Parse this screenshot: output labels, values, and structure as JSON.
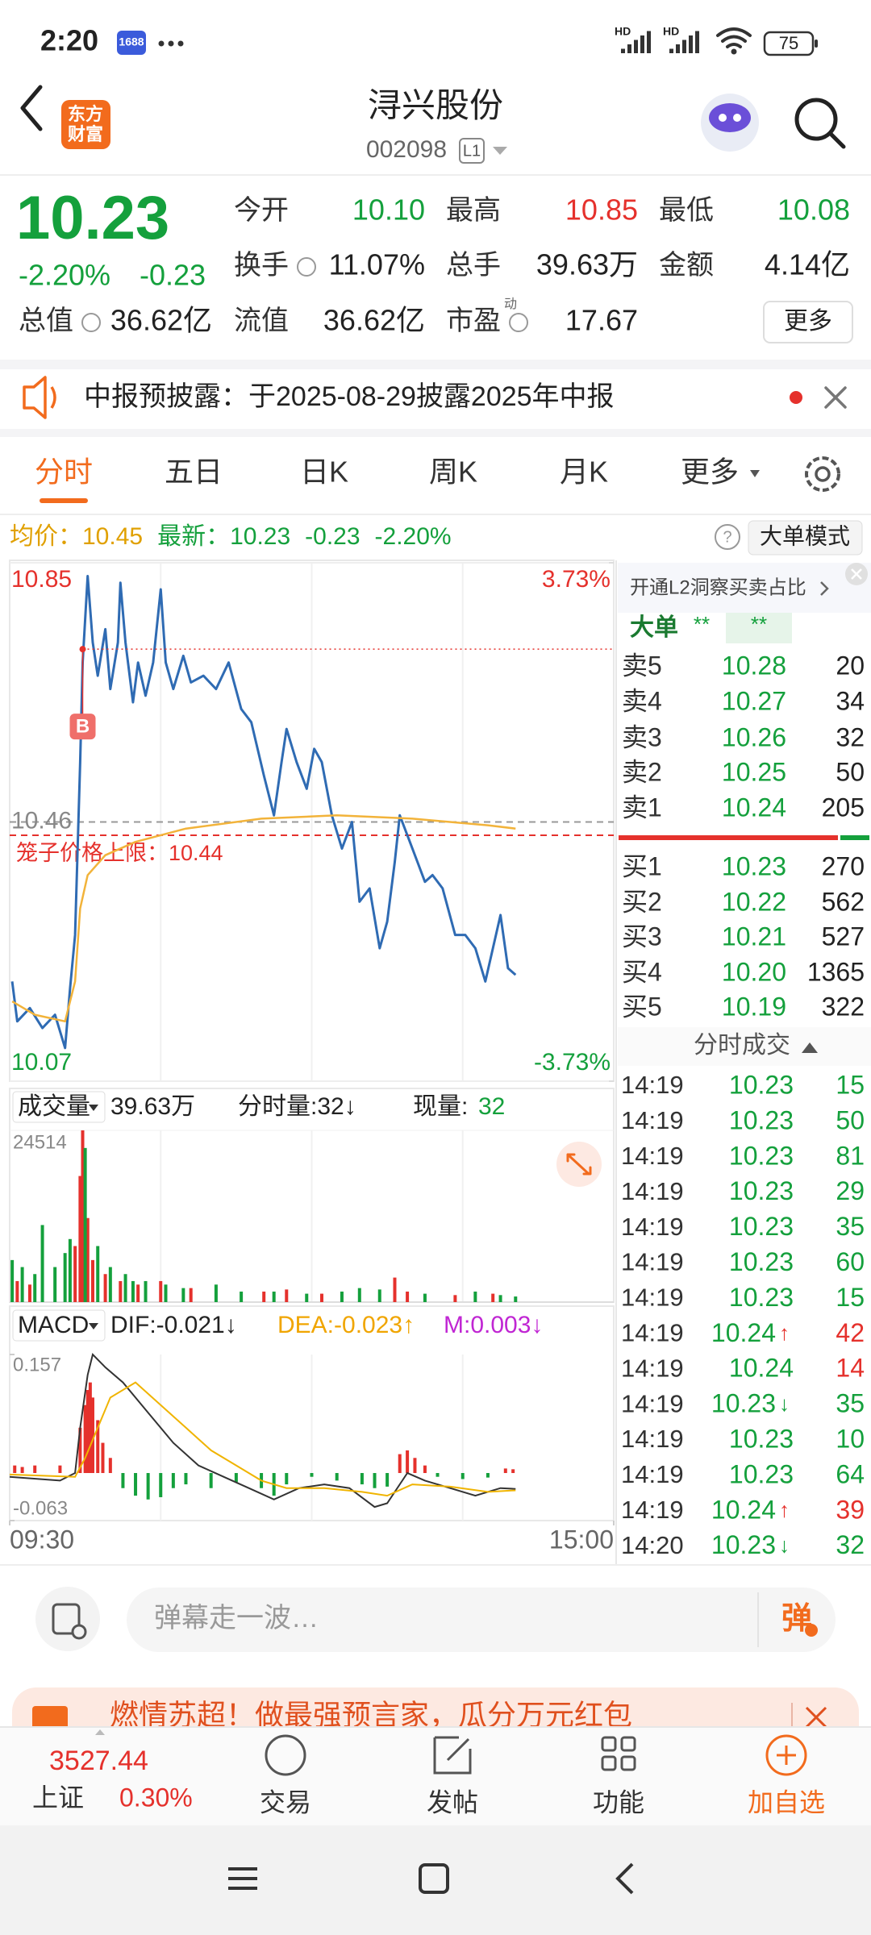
{
  "status_bar": {
    "time": "2:20",
    "app_badge": "1688",
    "sim1": "HD",
    "sim2": "HD",
    "battery": "75"
  },
  "header": {
    "logo": [
      "东方",
      "财富"
    ],
    "title": "浔兴股份",
    "code": "002098",
    "level": "L1"
  },
  "quote": {
    "price": "10.23",
    "change_pct": "-2.20%",
    "change": "-0.23",
    "color": "#14a03c",
    "stats": [
      [
        {
          "label": "今开",
          "value": "10.10",
          "color": "#14a03c"
        },
        {
          "label": "最高",
          "value": "10.85",
          "color": "#e5312c"
        },
        {
          "label": "最低",
          "value": "10.08",
          "color": "#14a03c"
        }
      ],
      [
        {
          "label": "换手",
          "value": "11.07%",
          "color": "#222222"
        },
        {
          "label": "总手",
          "value": "39.63万",
          "color": "#222222"
        },
        {
          "label": "金额",
          "value": "4.14亿",
          "color": "#222222"
        }
      ],
      [
        {
          "label": "总值",
          "value": "36.62亿",
          "color": "#222222"
        },
        {
          "label": "流值",
          "value": "36.62亿",
          "color": "#222222"
        },
        {
          "label": "市盈",
          "tag": "动",
          "value": "17.67",
          "color": "#222222"
        }
      ]
    ],
    "more": "更多"
  },
  "notice": {
    "text": "中报预披露：于2025-08-29披露2025年中报"
  },
  "tabs": {
    "items": [
      "分时",
      "五日",
      "日K",
      "周K",
      "月K",
      "更多"
    ],
    "active": 0
  },
  "info_bar": {
    "avg_label": "均价：",
    "avg": "10.45",
    "latest_label": "最新：",
    "latest": "10.23",
    "change": "-0.23",
    "change_pct": "-2.20%",
    "help": "?",
    "mode": "大单模式"
  },
  "price_chart": {
    "type": "line",
    "xlim": [
      0,
      240
    ],
    "ylim": [
      10.07,
      10.85
    ],
    "yticks": [
      10.07,
      10.46,
      10.85
    ],
    "y2lim": [
      -3.73,
      3.73
    ],
    "y2ticks": [
      {
        "value": -3.73,
        "label": "-3.73%"
      },
      {
        "value": 3.73,
        "label": "3.73%"
      }
    ],
    "grid": true,
    "series": [
      {
        "color": "#2f6bb3",
        "x": [
          1,
          3,
          8,
          13,
          18,
          22,
          24,
          26,
          28,
          29,
          31,
          33,
          35,
          38,
          40,
          43,
          44,
          46,
          49,
          51,
          54,
          57,
          60,
          62,
          65,
          69,
          72,
          77,
          82,
          87,
          92,
          96,
          101,
          105,
          108,
          110,
          114,
          118,
          121,
          124,
          128,
          132,
          136,
          139,
          143,
          147,
          150,
          153,
          155,
          158,
          162,
          165,
          168,
          172,
          177,
          181,
          185,
          189,
          192,
          195,
          198,
          201
        ],
        "values": [
          10.22,
          10.16,
          10.18,
          10.15,
          10.17,
          10.12,
          10.21,
          10.29,
          10.55,
          10.7,
          10.83,
          10.73,
          10.68,
          10.75,
          10.66,
          10.73,
          10.82,
          10.73,
          10.64,
          10.7,
          10.65,
          10.7,
          10.81,
          10.7,
          10.66,
          10.71,
          10.67,
          10.68,
          10.66,
          10.7,
          10.63,
          10.61,
          10.53,
          10.47,
          10.55,
          10.6,
          10.55,
          10.51,
          10.57,
          10.55,
          10.47,
          10.42,
          10.46,
          10.34,
          10.36,
          10.27,
          10.31,
          10.4,
          10.47,
          10.44,
          10.4,
          10.37,
          10.38,
          10.36,
          10.29,
          10.29,
          10.27,
          10.22,
          10.27,
          10.32,
          10.24,
          10.23
        ]
      },
      {
        "color": "#f2b33a",
        "x": [
          1,
          10,
          22,
          26,
          28,
          31,
          38,
          50,
          70,
          100,
          130,
          160,
          190,
          201
        ],
        "values": [
          10.19,
          10.17,
          10.16,
          10.22,
          10.33,
          10.38,
          10.41,
          10.43,
          10.45,
          10.465,
          10.47,
          10.465,
          10.455,
          10.45
        ]
      }
    ],
    "limit_line": {
      "label": "笼子价格上限：",
      "value": 10.44,
      "color": "#e5312c"
    },
    "buy_marker": {
      "label": "B",
      "x": 29,
      "value": 10.72,
      "color": "#e5312c"
    }
  },
  "volume_chart": {
    "type": "bar",
    "selector": "成交量",
    "total": "39.63万",
    "minute_volume": "分时量:32↓",
    "current_label": "现量:",
    "current": "32",
    "xlim": [
      0,
      240
    ],
    "ylim": [
      0,
      24514
    ],
    "yticks": [
      24514
    ],
    "series": [
      {
        "color": "#e5312c",
        "x": [
          3,
          8,
          26,
          28,
          29,
          31,
          33,
          38,
          44,
          51,
          60,
          72,
          101,
          110,
          124,
          153,
          158,
          177,
          192
        ],
        "values": [
          3000,
          2500,
          8000,
          18000,
          24514,
          12000,
          6000,
          4000,
          3000,
          2500,
          3000,
          2000,
          1500,
          1800,
          1200,
          3500,
          1500,
          1000,
          1200
        ]
      },
      {
        "color": "#14a03c",
        "x": [
          1,
          5,
          10,
          13,
          18,
          22,
          24,
          30,
          35,
          40,
          46,
          49,
          54,
          62,
          69,
          82,
          92,
          105,
          118,
          132,
          139,
          147,
          165,
          185,
          195,
          201
        ],
        "values": [
          6000,
          5000,
          4000,
          11000,
          5000,
          7000,
          9000,
          22000,
          8000,
          5000,
          4000,
          3000,
          3000,
          2500,
          2000,
          2500,
          1500,
          1500,
          1200,
          1500,
          2000,
          1800,
          1200,
          1500,
          1000,
          800
        ]
      }
    ]
  },
  "macd_chart": {
    "type": "line",
    "selector": "MACD",
    "dif": "DIF:-0.021↓",
    "dea": "DEA:-0.023↑",
    "m": "M:0.003↓",
    "xlim": [
      0,
      240
    ],
    "xticks": [
      {
        "value": 0,
        "label": "09:30"
      },
      {
        "value": 240,
        "label": "15:00"
      }
    ],
    "ylim": [
      -0.063,
      0.157
    ],
    "yticks": [
      -0.063,
      0.157
    ],
    "lines": [
      {
        "color": "#333333",
        "x": [
          0,
          20,
          26,
          28,
          31,
          33,
          38,
          45,
          55,
          65,
          75,
          85,
          95,
          105,
          115,
          125,
          135,
          145,
          150,
          158,
          165,
          175,
          185,
          195,
          201
        ],
        "values": [
          -0.005,
          -0.01,
          0.0,
          0.06,
          0.13,
          0.157,
          0.14,
          0.12,
          0.08,
          0.04,
          0.01,
          -0.005,
          -0.02,
          -0.035,
          -0.02,
          -0.015,
          -0.02,
          -0.045,
          -0.04,
          0.0,
          -0.01,
          -0.02,
          -0.03,
          -0.02,
          -0.021
        ]
      },
      {
        "color": "#f0b400",
        "x": [
          0,
          26,
          30,
          40,
          50,
          60,
          70,
          80,
          90,
          100,
          110,
          125,
          140,
          150,
          160,
          175,
          190,
          201
        ],
        "values": [
          -0.002,
          -0.005,
          0.02,
          0.1,
          0.12,
          0.09,
          0.06,
          0.03,
          0.01,
          -0.01,
          -0.02,
          -0.02,
          -0.025,
          -0.03,
          -0.015,
          -0.018,
          -0.025,
          -0.023
        ]
      }
    ],
    "bars": [
      {
        "color": "#e5312c",
        "x": [
          2,
          5,
          10,
          20,
          28,
          30,
          31,
          32,
          33,
          35,
          37,
          40,
          155,
          158,
          161,
          165,
          197,
          200
        ],
        "values": [
          0.01,
          0.008,
          0.01,
          0.01,
          0.06,
          0.09,
          0.11,
          0.12,
          0.1,
          0.07,
          0.04,
          0.02,
          0.025,
          0.03,
          0.02,
          0.01,
          0.006,
          0.005
        ]
      },
      {
        "color": "#14a03c",
        "x": [
          45,
          50,
          55,
          60,
          65,
          70,
          80,
          90,
          100,
          105,
          110,
          120,
          130,
          140,
          145,
          150,
          170,
          180,
          190
        ],
        "values": [
          -0.02,
          -0.03,
          -0.035,
          -0.032,
          -0.02,
          -0.015,
          -0.02,
          -0.012,
          -0.02,
          -0.03,
          -0.015,
          -0.005,
          -0.01,
          -0.015,
          -0.02,
          -0.018,
          -0.005,
          -0.008,
          -0.006
        ]
      }
    ]
  },
  "order_book": {
    "header": "开通L2洞察买卖占比",
    "big_order": {
      "label": "大单",
      "buy": "**",
      "sell": "**"
    },
    "asks": [
      {
        "label": "卖5",
        "price": "10.28",
        "volume": "20"
      },
      {
        "label": "卖4",
        "price": "10.27",
        "volume": "34"
      },
      {
        "label": "卖3",
        "price": "10.26",
        "volume": "32"
      },
      {
        "label": "卖2",
        "price": "10.25",
        "volume": "50"
      },
      {
        "label": "卖1",
        "price": "10.24",
        "volume": "205"
      }
    ],
    "bids": [
      {
        "label": "买1",
        "price": "10.23",
        "volume": "270"
      },
      {
        "label": "买2",
        "price": "10.22",
        "volume": "562"
      },
      {
        "label": "买3",
        "price": "10.21",
        "volume": "527"
      },
      {
        "label": "买4",
        "price": "10.20",
        "volume": "1365"
      },
      {
        "label": "买5",
        "price": "10.19",
        "volume": "322"
      }
    ]
  },
  "trades": {
    "title": "分时成交",
    "rows": [
      {
        "time": "14:19",
        "price": "10.23",
        "volume": "15",
        "color": "#14a03c"
      },
      {
        "time": "14:19",
        "price": "10.23",
        "volume": "50",
        "color": "#14a03c"
      },
      {
        "time": "14:19",
        "price": "10.23",
        "volume": "81",
        "color": "#14a03c"
      },
      {
        "time": "14:19",
        "price": "10.23",
        "volume": "29",
        "color": "#14a03c"
      },
      {
        "time": "14:19",
        "price": "10.23",
        "volume": "35",
        "color": "#14a03c"
      },
      {
        "time": "14:19",
        "price": "10.23",
        "volume": "60",
        "color": "#14a03c"
      },
      {
        "time": "14:19",
        "price": "10.23",
        "volume": "15",
        "color": "#14a03c"
      },
      {
        "time": "14:19",
        "price": "10.24",
        "arrow": "↑",
        "volume": "42",
        "color": "#e5312c"
      },
      {
        "time": "14:19",
        "price": "10.24",
        "volume": "14",
        "color": "#e5312c"
      },
      {
        "time": "14:19",
        "price": "10.23",
        "arrow": "↓",
        "volume": "35",
        "color": "#14a03c"
      },
      {
        "time": "14:19",
        "price": "10.23",
        "volume": "10",
        "color": "#14a03c"
      },
      {
        "time": "14:19",
        "price": "10.23",
        "volume": "64",
        "color": "#14a03c"
      },
      {
        "time": "14:19",
        "price": "10.24",
        "arrow": "↑",
        "volume": "39",
        "color": "#e5312c"
      },
      {
        "time": "14:20",
        "price": "10.23",
        "arrow": "↓",
        "volume": "32",
        "color": "#14a03c"
      }
    ]
  },
  "comment_bar": {
    "placeholder": "弹幕走一波…",
    "button": "弹"
  },
  "banner": {
    "text": "燃情苏超！做最强预言家，瓜分万元红包"
  },
  "bottom_bar": {
    "index": {
      "value": "3527.44",
      "name": "上证",
      "change": "0.30%"
    },
    "tabs": [
      "交易",
      "发帖",
      "功能",
      "加自选"
    ]
  }
}
